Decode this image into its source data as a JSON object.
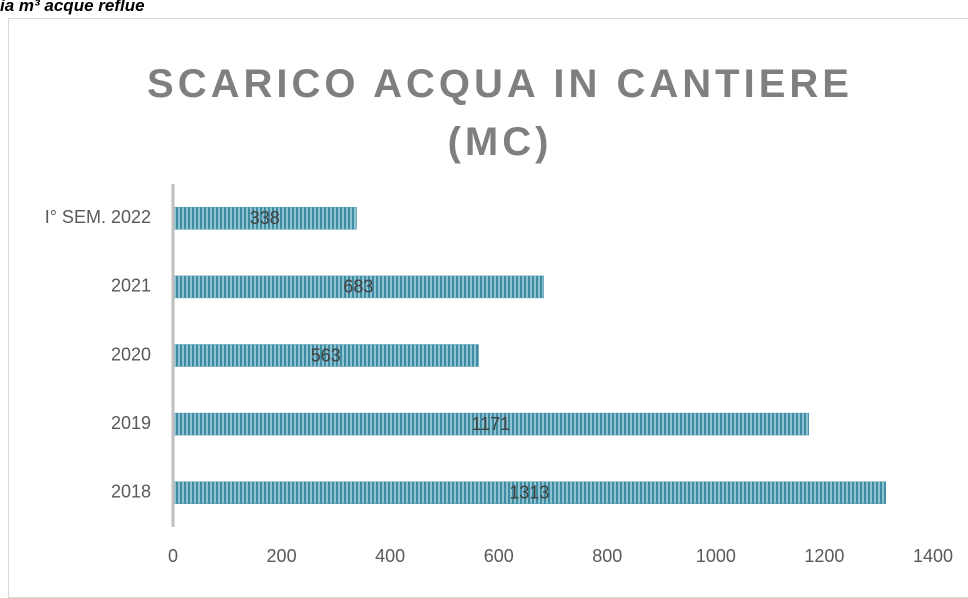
{
  "caption": "ia m³ acque reflue",
  "chart_data": {
    "type": "barh",
    "title": "SCARICO ACQUA IN CANTIERE (MC)",
    "categories": [
      "2018",
      "2019",
      "2020",
      "2021",
      "I° SEM. 2022"
    ],
    "values": [
      1313,
      1171,
      563,
      683,
      338
    ],
    "color": "#4a97ad",
    "xlim": [
      0,
      1400
    ],
    "xticks": [
      0,
      200,
      400,
      600,
      800,
      1000,
      1200,
      1400
    ]
  }
}
